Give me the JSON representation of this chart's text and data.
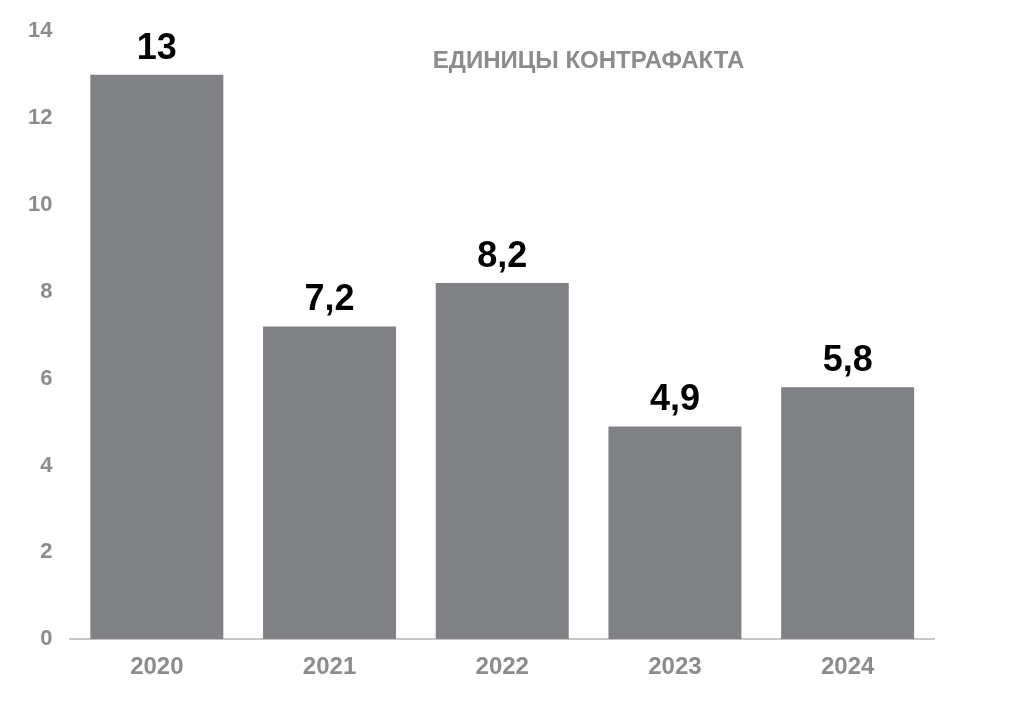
{
  "chart_data": {
    "type": "bar",
    "title": "ЕДИНИЦЫ КОНТРАФАКТА",
    "categories": [
      "2020",
      "2021",
      "2022",
      "2023",
      "2024"
    ],
    "values": [
      13,
      7.2,
      8.2,
      4.9,
      5.8
    ],
    "value_labels": [
      "13",
      "7,2",
      "8,2",
      "4,9",
      "5,8"
    ],
    "color": "#7f8184",
    "ylim": [
      0,
      14
    ],
    "yticks": [
      0,
      2,
      4,
      6,
      8,
      10,
      12,
      14
    ],
    "grid": false,
    "legend": false
  }
}
